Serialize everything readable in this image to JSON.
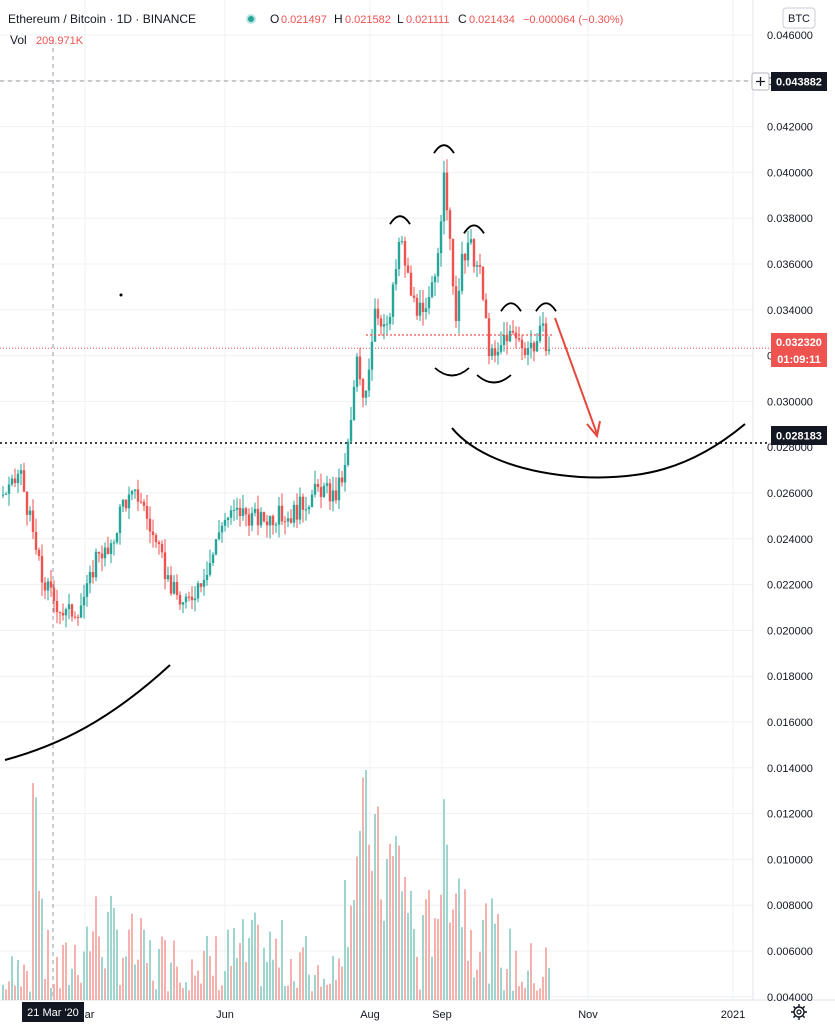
{
  "header": {
    "symbol": "Ethereum / Bitcoin · 1D · BINANCE",
    "ohlc": {
      "open_label": "O",
      "open": "0.021497",
      "high_label": "H",
      "high": "0.021582",
      "low_label": "L",
      "low": "0.021111",
      "close_label": "C",
      "close": "0.021434",
      "change": "−0.000064 (−0.30%)"
    },
    "volume_label": "Vol",
    "volume": "209.971K",
    "currency_badge": "BTC"
  },
  "price_tags": {
    "crosshair_price": "0.043882",
    "last_price": "0.032320",
    "countdown": "01:09:11",
    "support_level": "0.028183"
  },
  "crosshair_date_label": "21 Mar '20",
  "colors": {
    "up": "#26a69a",
    "down": "#ef5350",
    "volume_up": "#9fd5cf",
    "volume_down": "#f5b1ae",
    "annotation": "#000000",
    "arrow": "#e5483c",
    "grid": "#eef1f4"
  },
  "icons": {
    "settings": "gear-icon",
    "crosshair_add": "plus-icon",
    "live": "live-dot-icon"
  },
  "chart_data": {
    "type": "candlestick",
    "y_ticks": [
      "0.046000",
      "0.044000",
      "0.042000",
      "0.040000",
      "0.038000",
      "0.036000",
      "0.034000",
      "0.032000",
      "0.030000",
      "0.028000",
      "0.026000",
      "0.024000",
      "0.022000",
      "0.020000",
      "0.018000",
      "0.016000",
      "0.014000",
      "0.012000",
      "0.010000",
      "0.008000",
      "0.006000",
      "0.004000"
    ],
    "ylim": [
      0.0038,
      0.0468
    ],
    "x_ticks": [
      "Mar",
      "Jun",
      "Aug",
      "Sep",
      "Nov",
      "2021"
    ],
    "grid": true,
    "price_path": [
      [
        0,
        0.0259
      ],
      [
        12,
        0.0262
      ],
      [
        20,
        0.027
      ],
      [
        30,
        0.0248
      ],
      [
        42,
        0.0222
      ],
      [
        55,
        0.0213
      ],
      [
        65,
        0.0207
      ],
      [
        78,
        0.021
      ],
      [
        88,
        0.0218
      ],
      [
        98,
        0.0236
      ],
      [
        110,
        0.0232
      ],
      [
        122,
        0.0256
      ],
      [
        140,
        0.0259
      ],
      [
        150,
        0.0245
      ],
      [
        160,
        0.0232
      ],
      [
        172,
        0.0218
      ],
      [
        185,
        0.021
      ],
      [
        200,
        0.0222
      ],
      [
        212,
        0.0232
      ],
      [
        222,
        0.0248
      ],
      [
        240,
        0.0252
      ],
      [
        260,
        0.0248
      ],
      [
        275,
        0.025
      ],
      [
        290,
        0.025
      ],
      [
        305,
        0.0256
      ],
      [
        320,
        0.0262
      ],
      [
        335,
        0.0258
      ],
      [
        345,
        0.027
      ],
      [
        352,
        0.0295
      ],
      [
        357,
        0.0318
      ],
      [
        362,
        0.03
      ],
      [
        368,
        0.0312
      ],
      [
        375,
        0.0342
      ],
      [
        388,
        0.033
      ],
      [
        400,
        0.0372
      ],
      [
        412,
        0.0345
      ],
      [
        425,
        0.0335
      ],
      [
        435,
        0.0355
      ],
      [
        445,
        0.04
      ],
      [
        455,
        0.0335
      ],
      [
        462,
        0.036
      ],
      [
        470,
        0.0368
      ],
      [
        480,
        0.0355
      ],
      [
        490,
        0.032
      ],
      [
        497,
        0.0318
      ],
      [
        505,
        0.033
      ],
      [
        515,
        0.0328
      ],
      [
        525,
        0.0324
      ],
      [
        535,
        0.0325
      ],
      [
        542,
        0.0331
      ],
      [
        549,
        0.0323
      ]
    ],
    "volume_path": [
      [
        0,
        0.0045
      ],
      [
        30,
        0.005
      ],
      [
        35,
        0.014
      ],
      [
        45,
        0.0055
      ],
      [
        60,
        0.0048
      ],
      [
        95,
        0.007
      ],
      [
        150,
        0.0055
      ],
      [
        200,
        0.0052
      ],
      [
        260,
        0.006
      ],
      [
        330,
        0.005
      ],
      [
        355,
        0.01
      ],
      [
        372,
        0.0115
      ],
      [
        380,
        0.009
      ],
      [
        400,
        0.01
      ],
      [
        420,
        0.0055
      ],
      [
        445,
        0.01
      ],
      [
        455,
        0.0098
      ],
      [
        470,
        0.007
      ],
      [
        490,
        0.0065
      ],
      [
        510,
        0.0055
      ],
      [
        530,
        0.005
      ],
      [
        549,
        0.0052
      ]
    ],
    "head_and_shoulders_arcs": [
      {
        "label": "left-shoulder",
        "cx": 400,
        "cy": 0.038
      },
      {
        "label": "head",
        "cx": 444,
        "cy": 0.0411
      },
      {
        "label": "right-shoulder",
        "cx": 474,
        "cy": 0.0376
      },
      {
        "label": "small-top-1",
        "cx": 511,
        "cy": 0.0342
      },
      {
        "label": "small-top-2",
        "cx": 546,
        "cy": 0.0342
      }
    ],
    "neckline_level": 0.0329,
    "support_level": 0.028183,
    "projection_target": {
      "x": 596,
      "price": 0.0281
    }
  }
}
